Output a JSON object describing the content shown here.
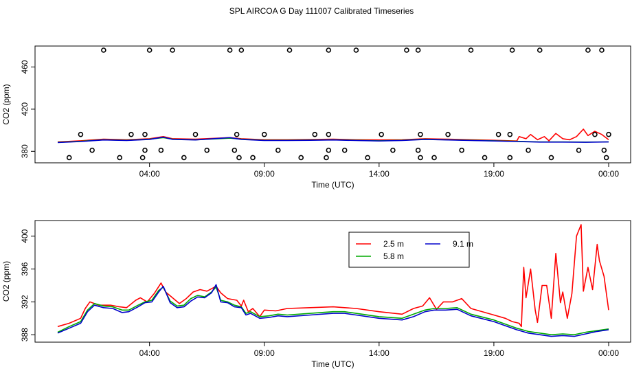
{
  "title": "SPL AIRCOA G  Day 111007  Calibrated Timeseries",
  "chart_data": [
    {
      "type": "line",
      "panel": "top",
      "xlabel": "Time (UTC)",
      "ylabel": "CO2 (ppm)",
      "xlim": [
        0,
        24
      ],
      "ylim": [
        373,
        476
      ],
      "x_ticks": [
        4,
        9,
        14,
        19,
        24
      ],
      "x_tick_labels": [
        "04:00",
        "09:00",
        "14:00",
        "19:00",
        "00:00"
      ],
      "y_ticks": [
        380,
        420,
        460
      ],
      "y_tick_labels": [
        "380",
        "420",
        "460"
      ],
      "series": [
        {
          "name": "2.5 m",
          "color": "#ff0000",
          "x": [
            0,
            1,
            2,
            3,
            4,
            4.6,
            5,
            6,
            7,
            7.5,
            8,
            9,
            10,
            11,
            12,
            13,
            14,
            15,
            16,
            17,
            18,
            19,
            20,
            20.1,
            20.4,
            20.6,
            20.9,
            21.2,
            21.4,
            21.7,
            22,
            22.3,
            22.6,
            22.9,
            23.1,
            23.4,
            23.7,
            24
          ],
          "y": [
            389,
            390,
            391.5,
            391,
            392,
            394,
            392,
            391.5,
            392.5,
            393,
            392,
            391,
            391,
            391.2,
            391.5,
            391,
            390.8,
            391,
            392,
            391.5,
            391,
            390.5,
            389.8,
            394,
            392,
            396,
            391,
            394,
            390,
            397,
            392,
            391,
            394,
            401,
            395,
            399,
            396,
            391
          ]
        },
        {
          "name": "5.8 m",
          "color": "#00aa00",
          "x": [
            0,
            1,
            2,
            3,
            4,
            4.6,
            5,
            6,
            7,
            7.5,
            8,
            9,
            10,
            11,
            12,
            13,
            14,
            15,
            16,
            17,
            18,
            19,
            20,
            21,
            22,
            23,
            24
          ],
          "y": [
            388.5,
            389.5,
            391,
            390.5,
            391.5,
            393,
            391.5,
            391,
            392,
            392.5,
            391.5,
            390.5,
            390.5,
            390.7,
            391,
            390.5,
            390,
            390.5,
            391.5,
            391,
            390.5,
            390,
            389.5,
            389,
            389,
            388.8,
            389
          ]
        },
        {
          "name": "9.1 m",
          "color": "#0000cc",
          "x": [
            0,
            1,
            2,
            3,
            4,
            4.6,
            5,
            6,
            7,
            7.5,
            8,
            9,
            10,
            11,
            12,
            13,
            14,
            15,
            16,
            17,
            18,
            19,
            20,
            21,
            22,
            23,
            24
          ],
          "y": [
            388.3,
            389.3,
            390.8,
            390.3,
            391.3,
            393.5,
            391.3,
            390.8,
            392.3,
            393,
            391.3,
            390.3,
            390.3,
            390.5,
            390.8,
            390.3,
            389.8,
            390.3,
            391.3,
            390.8,
            390.3,
            389.8,
            389.3,
            388.8,
            388.8,
            388.6,
            388.9
          ]
        }
      ],
      "points": {
        "x": [
          2.0,
          4.0,
          5.0,
          7.5,
          8.0,
          10.1,
          11.8,
          13.0,
          15.2,
          15.7,
          18.0,
          19.8,
          21.0,
          23.1,
          23.7,
          1.0,
          3.2,
          3.8,
          6.0,
          7.8,
          9.0,
          11.2,
          11.8,
          14.1,
          15.8,
          17.0,
          19.2,
          19.7,
          23.4,
          24.0,
          1.5,
          3.8,
          4.5,
          6.5,
          7.7,
          9.6,
          11.8,
          12.5,
          14.6,
          15.7,
          17.6,
          20.5,
          22.7,
          23.8,
          0.5,
          2.7,
          3.7,
          5.5,
          7.9,
          8.5,
          10.6,
          11.7,
          13.5,
          15.8,
          16.4,
          18.6,
          19.7,
          21.5,
          23.9
        ],
        "y": [
          476,
          476,
          476,
          476,
          476,
          476,
          476,
          476,
          476,
          476,
          476,
          476,
          476,
          476,
          476,
          396,
          396,
          396,
          396,
          396,
          396,
          396,
          396,
          396,
          396,
          396,
          396,
          396,
          396,
          396,
          381,
          381,
          381,
          381,
          381,
          381,
          381,
          381,
          381,
          381,
          381,
          381,
          381,
          381,
          374,
          374,
          374,
          374,
          374,
          374,
          374,
          374,
          374,
          374,
          374,
          374,
          374,
          374,
          374
        ]
      }
    },
    {
      "type": "line",
      "panel": "bottom",
      "xlabel": "Time (UTC)",
      "ylabel": "CO2 (ppm)",
      "xlim": [
        0,
        24
      ],
      "ylim": [
        387.6,
        401.4
      ],
      "x_ticks": [
        4,
        9,
        14,
        19,
        24
      ],
      "x_tick_labels": [
        "04:00",
        "09:00",
        "14:00",
        "19:00",
        "00:00"
      ],
      "y_ticks": [
        388,
        392,
        396,
        400
      ],
      "y_tick_labels": [
        "388",
        "392",
        "396",
        "400"
      ],
      "legend": {
        "position": "top-right",
        "entries": [
          "2.5 m",
          "9.1 m",
          "5.8 m"
        ]
      },
      "series": [
        {
          "name": "2.5 m",
          "color": "#ff0000",
          "x": [
            0,
            0.5,
            1.0,
            1.2,
            1.4,
            1.8,
            2.3,
            2.7,
            3.0,
            3.4,
            3.6,
            3.9,
            4.2,
            4.5,
            4.7,
            5.0,
            5.3,
            5.6,
            5.9,
            6.2,
            6.5,
            6.9,
            7.1,
            7.4,
            7.8,
            8.0,
            8.1,
            8.3,
            8.5,
            8.8,
            9.0,
            9.5,
            10,
            11,
            12,
            12.5,
            13,
            14,
            15,
            15.5,
            15.9,
            16.2,
            16.5,
            16.8,
            17.2,
            17.6,
            18,
            19,
            19.5,
            19.8,
            20.1,
            20.2,
            20.3,
            20.4,
            20.6,
            20.8,
            20.9,
            21.1,
            21.3,
            21.5,
            21.7,
            21.9,
            22.0,
            22.2,
            22.4,
            22.6,
            22.8,
            22.9,
            23.1,
            23.3,
            23.5,
            23.6,
            23.8,
            24.0
          ],
          "y": [
            389,
            389.4,
            390,
            391.2,
            392,
            391.6,
            391.6,
            391.4,
            391.3,
            392.2,
            392.5,
            392,
            393,
            394.3,
            393.2,
            392.5,
            391.8,
            392.4,
            393.2,
            393.5,
            393.3,
            393.9,
            393.1,
            392.4,
            392.2,
            391.5,
            392.2,
            390.8,
            391.2,
            390.2,
            391.0,
            390.9,
            391.2,
            391.3,
            391.4,
            391.3,
            391.2,
            390.8,
            390.5,
            391.2,
            391.5,
            392.5,
            391.1,
            392.0,
            392.0,
            392.4,
            391.2,
            390.4,
            390.0,
            389.6,
            389.4,
            389.0,
            396.2,
            392.5,
            396.0,
            391,
            389.5,
            394.0,
            394.0,
            390.0,
            397.9,
            391.9,
            393.2,
            390.0,
            393.0,
            400.0,
            401.4,
            393.3,
            396.2,
            393.5,
            399.0,
            397.0,
            395.1,
            391.0
          ]
        },
        {
          "name": "5.8 m",
          "color": "#00aa00",
          "x": [
            0,
            0.5,
            1.0,
            1.3,
            1.6,
            2.0,
            2.4,
            2.8,
            3.1,
            3.5,
            3.8,
            4.1,
            4.4,
            4.6,
            4.9,
            5.2,
            5.5,
            5.8,
            6.1,
            6.4,
            6.7,
            6.9,
            7.1,
            7.4,
            7.7,
            8.0,
            8.2,
            8.4,
            8.8,
            9.2,
            9.6,
            10,
            11,
            12,
            12.5,
            13,
            14,
            15,
            15.5,
            16,
            16.4,
            16.9,
            17.4,
            18,
            19,
            19.5,
            20,
            20.5,
            21,
            21.5,
            22,
            22.5,
            23,
            23.5,
            24.0
          ],
          "y": [
            388.3,
            389,
            389.6,
            391,
            391.8,
            391.5,
            391.4,
            391.0,
            391.0,
            391.6,
            392.0,
            392.2,
            393.4,
            393.8,
            392.1,
            391.5,
            391.6,
            392.4,
            392.8,
            392.6,
            393.2,
            393.8,
            392.2,
            392.0,
            391.6,
            391.4,
            390.6,
            390.8,
            390.2,
            390.3,
            390.5,
            390.4,
            390.6,
            390.8,
            390.8,
            390.6,
            390.2,
            390.0,
            390.5,
            391.0,
            391.2,
            391.2,
            391.3,
            390.5,
            389.8,
            389.3,
            388.8,
            388.4,
            388.2,
            388.0,
            388.1,
            388.0,
            388.3,
            388.5,
            388.7
          ]
        },
        {
          "name": "9.1 m",
          "color": "#0000cc",
          "x": [
            0,
            0.5,
            1.0,
            1.3,
            1.6,
            2.0,
            2.4,
            2.8,
            3.1,
            3.5,
            3.8,
            4.1,
            4.4,
            4.6,
            4.9,
            5.2,
            5.5,
            5.8,
            6.1,
            6.4,
            6.7,
            6.9,
            7.1,
            7.4,
            7.7,
            8.0,
            8.2,
            8.4,
            8.8,
            9.2,
            9.6,
            10,
            11,
            12,
            12.5,
            13,
            14,
            15,
            15.5,
            16,
            16.4,
            16.9,
            17.4,
            18,
            19,
            19.5,
            20,
            20.5,
            21,
            21.5,
            22,
            22.5,
            23,
            23.5,
            24.0
          ],
          "y": [
            388.2,
            388.8,
            389.4,
            390.8,
            391.6,
            391.3,
            391.2,
            390.7,
            390.8,
            391.4,
            391.9,
            392.0,
            393.2,
            393.9,
            391.9,
            391.3,
            391.4,
            392.1,
            392.6,
            392.5,
            393.1,
            394.1,
            392.0,
            391.9,
            391.4,
            391.3,
            390.4,
            390.6,
            390.0,
            390.1,
            390.3,
            390.2,
            390.4,
            390.6,
            390.6,
            390.4,
            390.0,
            389.8,
            390.2,
            390.8,
            391.0,
            391.0,
            391.1,
            390.3,
            389.6,
            389.1,
            388.6,
            388.2,
            388.0,
            387.8,
            387.9,
            387.8,
            388.1,
            388.4,
            388.6
          ]
        }
      ]
    }
  ]
}
